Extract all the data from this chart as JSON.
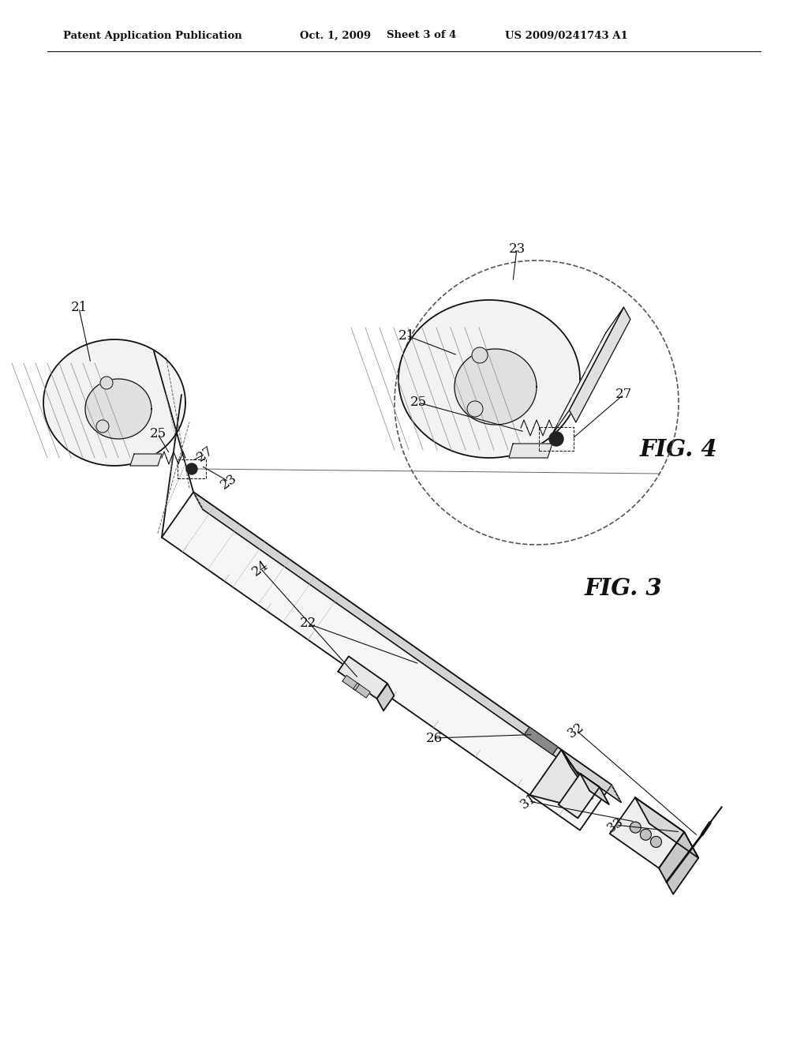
{
  "bg_color": "#ffffff",
  "line_color": "#111111",
  "header_left": "Patent Application Publication",
  "header_mid1": "Oct. 1, 2009",
  "header_mid2": "Sheet 3 of 4",
  "header_right": "US 2009/0241743 A1",
  "fig3_label": "FIG. 3",
  "fig4_label": "FIG. 4"
}
